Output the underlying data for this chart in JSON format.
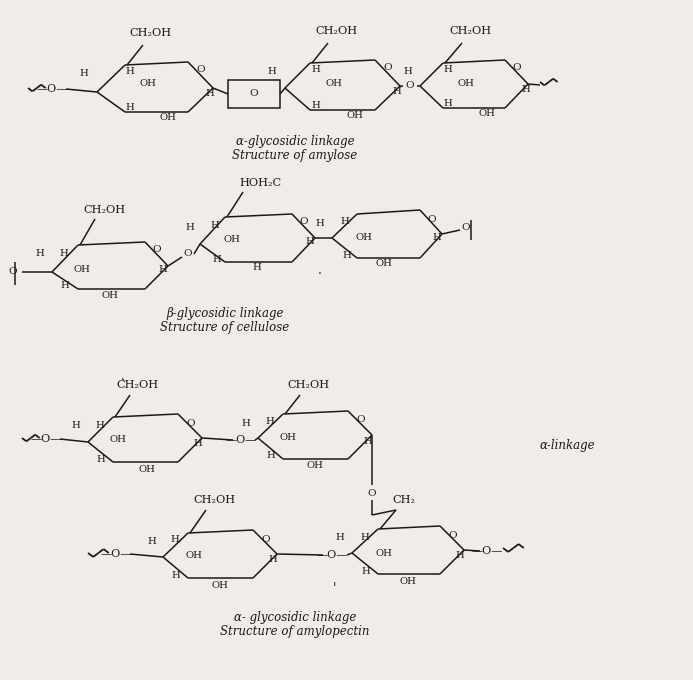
{
  "figsize": [
    6.93,
    6.8
  ],
  "dpi": 100,
  "bg_color": "#f0ede8",
  "line_color": "#1a1a1a",
  "sections": {
    "amylose": {
      "caption_line1": "α-glycosidic linkage",
      "caption_line2": "Structure of amylose"
    },
    "cellulose": {
      "caption_line1": "β-glycosidic linkage",
      "caption_line2": "Structure of cellulose"
    },
    "amylopectin": {
      "alpha_label": "α-linkage",
      "caption_line1": "α- glycosidic linkage",
      "caption_line2": "Structure of amylopectin"
    }
  }
}
